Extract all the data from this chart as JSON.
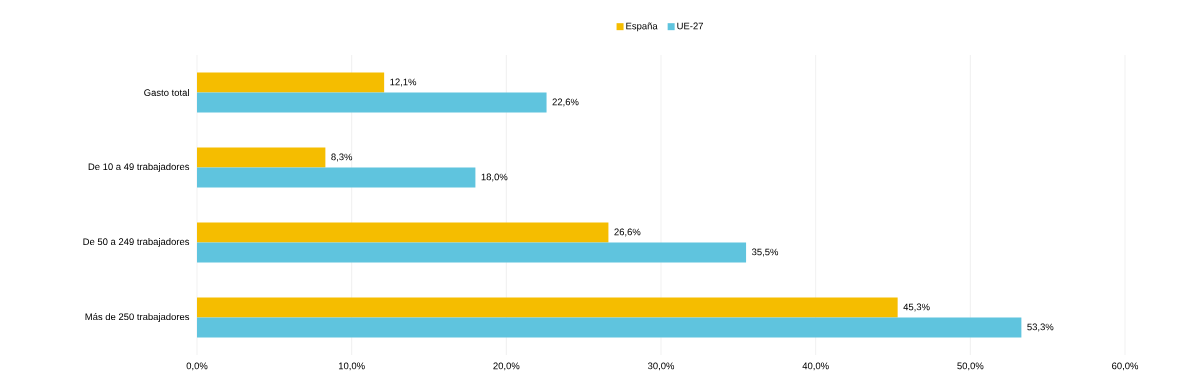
{
  "chart_data": {
    "type": "bar",
    "orientation": "horizontal",
    "categories": [
      "Gasto total",
      "De 10 a 49 trabajadores",
      "De 50 a 249 trabajadores",
      "Más de 250 trabajadores"
    ],
    "series": [
      {
        "name": "España",
        "color": "#f5bd00",
        "values": [
          12.1,
          8.3,
          26.6,
          45.3
        ],
        "value_labels": [
          "12,1%",
          "8,3%",
          "26,6%",
          "45,3%"
        ]
      },
      {
        "name": "UE-27",
        "color": "#5fc4de",
        "values": [
          22.6,
          18.0,
          35.5,
          53.3
        ],
        "value_labels": [
          "22,6%",
          "18,0%",
          "35,5%",
          "53,3%"
        ]
      }
    ],
    "xlim": [
      0,
      60
    ],
    "xticks": [
      {
        "value": 0,
        "label": "0,0%"
      },
      {
        "value": 10,
        "label": "10,0%"
      },
      {
        "value": 20,
        "label": "20,0%"
      },
      {
        "value": 30,
        "label": "30,0%"
      },
      {
        "value": 40,
        "label": "40,0%"
      },
      {
        "value": 50,
        "label": "50,0%"
      },
      {
        "value": 60,
        "label": "60,0%"
      }
    ],
    "grid": "x",
    "legend": "top"
  }
}
